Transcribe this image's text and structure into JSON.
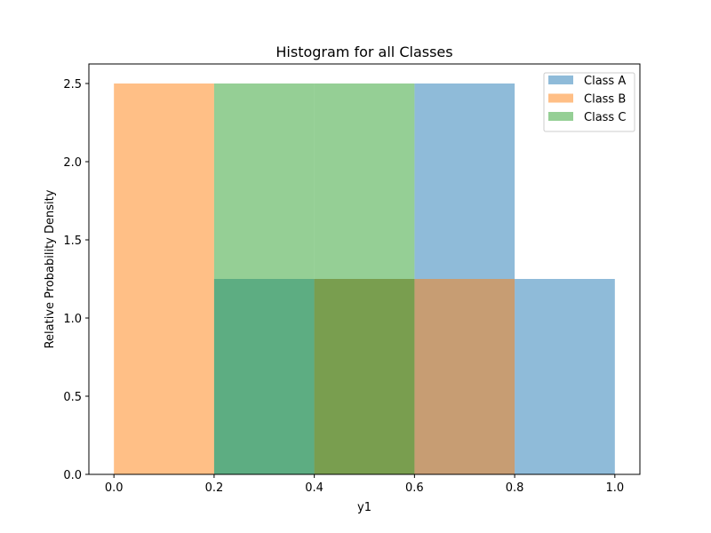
{
  "chart_data": {
    "type": "bar",
    "title": "Histogram for all Classes",
    "xlabel": "y1",
    "ylabel": "Relative Probability Density",
    "xlim": [
      -0.05,
      1.05
    ],
    "ylim": [
      0,
      2.625
    ],
    "xticks": [
      "0.0",
      "0.2",
      "0.4",
      "0.6",
      "0.8",
      "1.0"
    ],
    "yticks": [
      "0.0",
      "0.5",
      "1.0",
      "1.5",
      "2.0",
      "2.5"
    ],
    "xtick_values": [
      0.0,
      0.2,
      0.4,
      0.6,
      0.8,
      1.0
    ],
    "ytick_values": [
      0.0,
      0.5,
      1.0,
      1.5,
      2.0,
      2.5
    ],
    "bar_opacity": 0.5,
    "legend_position": "top-right",
    "series": [
      {
        "name": "Class A",
        "color": "#1f77b4",
        "bins": [
          [
            0.2,
            0.4,
            1.25
          ],
          [
            0.4,
            0.6,
            1.25
          ],
          [
            0.6,
            0.8,
            2.5
          ],
          [
            0.8,
            1.0,
            1.25
          ]
        ]
      },
      {
        "name": "Class B",
        "color": "#ff7f0e",
        "bins": [
          [
            0.0,
            0.2,
            2.5
          ],
          [
            0.4,
            0.6,
            1.25
          ],
          [
            0.6,
            0.8,
            1.25
          ]
        ]
      },
      {
        "name": "Class C",
        "color": "#2ca02c",
        "bins": [
          [
            0.2,
            0.4,
            2.5
          ],
          [
            0.4,
            0.6,
            2.5
          ]
        ]
      }
    ]
  }
}
